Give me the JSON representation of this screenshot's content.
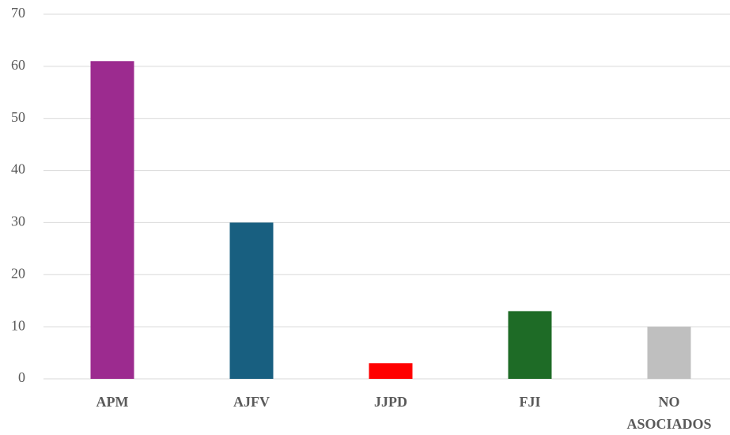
{
  "chart_data": {
    "type": "bar",
    "categories": [
      "APM",
      "AJFV",
      "JJPD",
      "FJI",
      "NO ASOCIADOS"
    ],
    "values": [
      61,
      30,
      3,
      13,
      10
    ],
    "colors": [
      "#9c2b8f",
      "#185f80",
      "#ff0000",
      "#1e6b26",
      "#bfbfbf"
    ],
    "ylim": [
      0,
      70
    ],
    "yticks": [
      0,
      10,
      20,
      30,
      40,
      50,
      60,
      70
    ],
    "grid": true
  }
}
